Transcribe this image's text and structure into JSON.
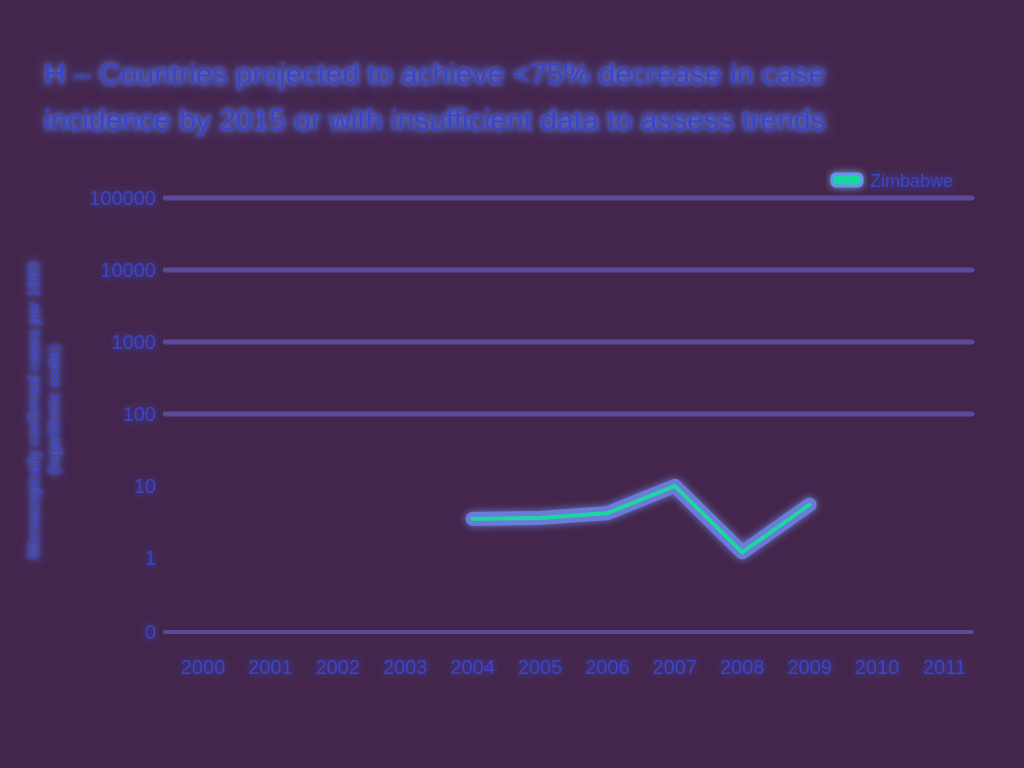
{
  "chart_data": {
    "type": "line",
    "title": "H – Countries projected to achieve <75% decrease in case incidence by 2015 or with insufficient data to assess trends",
    "ylabel": "Microscopically confirmed cases per 1000 (logarithmic scale)",
    "xlabel": "",
    "y_scale": "log",
    "y_ticks": [
      {
        "value": 0,
        "label": "0"
      },
      {
        "value": 1,
        "label": "1"
      },
      {
        "value": 10,
        "label": "10"
      },
      {
        "value": 100,
        "label": "100"
      },
      {
        "value": 1000,
        "label": "1000"
      },
      {
        "value": 10000,
        "label": "10000"
      },
      {
        "value": 100000,
        "label": "100000"
      }
    ],
    "categories": [
      "2000",
      "2001",
      "2002",
      "2003",
      "2004",
      "2005",
      "2006",
      "2007",
      "2008",
      "2009",
      "2010",
      "2011"
    ],
    "series": [
      {
        "name": "Zimbabwe",
        "color": "#1fd6a0",
        "points": [
          {
            "x": "2004",
            "y": 3.5
          },
          {
            "x": "2005",
            "y": 3.6
          },
          {
            "x": "2006",
            "y": 4.2
          },
          {
            "x": "2007",
            "y": 10
          },
          {
            "x": "2008",
            "y": 1.2
          },
          {
            "x": "2009",
            "y": 5.5
          }
        ]
      }
    ],
    "grid": true,
    "highlighted_gridlines": [
      1,
      10
    ],
    "legend_position": "top-right",
    "colors": {
      "background": "#44264c",
      "text": "#3a44c8",
      "glow": "#6f8cf0",
      "grid": "#5a4a9a"
    }
  }
}
